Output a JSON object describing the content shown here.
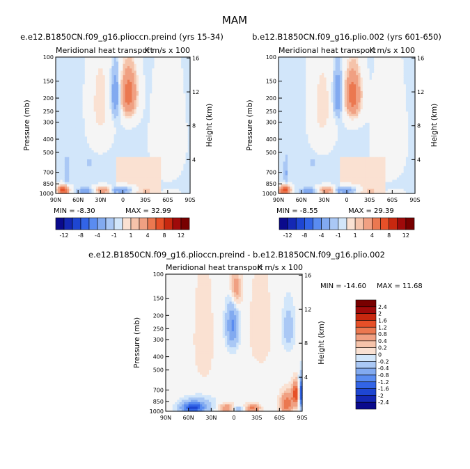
{
  "figure": {
    "title": "MAM"
  },
  "colors": {
    "level_colors": [
      "#0a0a8c",
      "#1428b4",
      "#1e46d2",
      "#3264e6",
      "#5a8cf0",
      "#82aaf0",
      "#aac8f5",
      "#d2e6fa",
      "#f5f5f5",
      "#fae1d2",
      "#f5c3aa",
      "#f0a082",
      "#eb7850",
      "#e65028",
      "#c8280f",
      "#a00a0a",
      "#780000"
    ],
    "background": "#ffffff"
  },
  "chart_data": [
    {
      "type": "heatmap",
      "panel": "top-left",
      "title": "e.e12.B1850CN.f09_g16.plioccn.preind (yrs 15-34)",
      "subtitle": "Meridional heat transport",
      "units": "K m/s x 100",
      "ylabel": "Pressure (mb)",
      "ylabel_right": "Height (km)",
      "x_ticks": [
        "90N",
        "60N",
        "30N",
        "0",
        "30S",
        "60S",
        "90S"
      ],
      "y_ticks": [
        "100",
        "150",
        "200",
        "250",
        "300",
        "400",
        "500",
        "700",
        "850",
        "1000"
      ],
      "y_ticks_right": [
        "16",
        "12",
        "8",
        "4"
      ],
      "min_text": "MIN = -8.30",
      "max_text": "MAX = 32.99",
      "blobs": [
        {
          "lat": -8,
          "p": 185,
          "v": 6,
          "w": 10,
          "h": 75
        },
        {
          "lat": 10,
          "p": 190,
          "v": -3,
          "w": 6,
          "h": 70
        },
        {
          "lat": 30,
          "p": 220,
          "v": 1.5,
          "w": 14,
          "h": 180
        },
        {
          "lat": 2,
          "p": 950,
          "v": -4,
          "w": 14,
          "h": 60
        },
        {
          "lat": 25,
          "p": 950,
          "v": 4,
          "w": 12,
          "h": 60
        },
        {
          "lat": 50,
          "p": 965,
          "v": -3,
          "w": 9,
          "h": 45
        },
        {
          "lat": 80,
          "p": 950,
          "v": 8,
          "w": 7,
          "h": 70
        },
        {
          "lat": -30,
          "p": 965,
          "v": 0.6,
          "w": 12,
          "h": 40
        },
        {
          "lat": -65,
          "p": 975,
          "v": 0.5,
          "w": 10,
          "h": 30
        },
        {
          "lat": 75,
          "p": 700,
          "v": -1.5,
          "w": 3,
          "h": 150
        },
        {
          "lat": 45,
          "p": 600,
          "v": -0.6,
          "w": 5,
          "h": 60
        },
        {
          "lat": -60,
          "p": 400,
          "v": 0.3,
          "w": 25,
          "h": 400
        }
      ],
      "cbar_ticks": [
        "-12",
        "-8",
        "-4",
        "-1",
        "1",
        "4",
        "8",
        "12"
      ]
    },
    {
      "type": "heatmap",
      "panel": "top-right",
      "title": "b.e12.B1850CN.f09_g16.plio.002 (yrs 601-650)",
      "subtitle": "Meridional heat transport",
      "units": "K m/s x 100",
      "ylabel": "Pressure (mb)",
      "ylabel_right": "Height (km)",
      "x_ticks": [
        "90N",
        "60N",
        "30N",
        "0",
        "30S",
        "60S",
        "90S"
      ],
      "y_ticks": [
        "100",
        "150",
        "200",
        "250",
        "300",
        "400",
        "500",
        "700",
        "850",
        "1000"
      ],
      "y_ticks_right": [
        "16",
        "12",
        "8",
        "4"
      ],
      "min_text": "MIN = -8.55",
      "max_text": "MAX = 29.39",
      "blobs": [
        {
          "lat": -8,
          "p": 190,
          "v": 6,
          "w": 10,
          "h": 75
        },
        {
          "lat": 12,
          "p": 190,
          "v": -3,
          "w": 6,
          "h": 70
        },
        {
          "lat": 32,
          "p": 230,
          "v": 1.5,
          "w": 14,
          "h": 180
        },
        {
          "lat": 2,
          "p": 950,
          "v": -4,
          "w": 14,
          "h": 60
        },
        {
          "lat": 25,
          "p": 950,
          "v": 4,
          "w": 12,
          "h": 60
        },
        {
          "lat": 50,
          "p": 965,
          "v": -3,
          "w": 9,
          "h": 45
        },
        {
          "lat": 82,
          "p": 950,
          "v": 8,
          "w": 7,
          "h": 70
        },
        {
          "lat": -30,
          "p": 965,
          "v": 0.6,
          "w": 12,
          "h": 40
        },
        {
          "lat": -65,
          "p": 975,
          "v": 0.5,
          "w": 10,
          "h": 30
        },
        {
          "lat": 80,
          "p": 700,
          "v": -1.5,
          "w": 3,
          "h": 150
        },
        {
          "lat": 45,
          "p": 600,
          "v": -0.6,
          "w": 5,
          "h": 60
        },
        {
          "lat": -55,
          "p": 400,
          "v": 0.3,
          "w": 25,
          "h": 400
        }
      ],
      "cbar_ticks": [
        "-12",
        "-8",
        "-4",
        "-1",
        "1",
        "4",
        "8",
        "12"
      ]
    },
    {
      "type": "heatmap",
      "panel": "bottom",
      "title": "e.e12.B1850CN.f09_g16.plioccn.preind - b.e12.B1850CN.f09_g16.plio.002",
      "subtitle": "Meridional heat transport",
      "units": "K m/s x 100",
      "ylabel": "Pressure (mb)",
      "ylabel_right": "Height (km)",
      "x_ticks": [
        "90N",
        "60N",
        "30N",
        "0",
        "30S",
        "60S",
        "90S"
      ],
      "y_ticks": [
        "100",
        "150",
        "200",
        "250",
        "300",
        "400",
        "500",
        "700",
        "850",
        "1000"
      ],
      "y_ticks_right": [
        "16",
        "12",
        "8",
        "4"
      ],
      "min_text": "MIN = -14.60",
      "max_text": "MAX = 11.68",
      "blobs": [
        {
          "lat": 2,
          "p": 240,
          "v": -1.2,
          "w": 8,
          "h": 90
        },
        {
          "lat": -2,
          "p": 130,
          "v": 0.8,
          "w": 7,
          "h": 45
        },
        {
          "lat": 40,
          "p": 300,
          "v": 0.3,
          "w": 12,
          "h": 250
        },
        {
          "lat": -35,
          "p": 250,
          "v": 0.25,
          "w": 15,
          "h": 200
        },
        {
          "lat": 55,
          "p": 950,
          "v": -1.8,
          "w": 15,
          "h": 90
        },
        {
          "lat": 45,
          "p": 900,
          "v": -0.5,
          "w": 20,
          "h": 120
        },
        {
          "lat": 10,
          "p": 950,
          "v": 0.8,
          "w": 10,
          "h": 70
        },
        {
          "lat": -5,
          "p": 960,
          "v": -0.6,
          "w": 7,
          "h": 40
        },
        {
          "lat": -25,
          "p": 955,
          "v": 1.0,
          "w": 9,
          "h": 70
        },
        {
          "lat": -70,
          "p": 880,
          "v": 1.2,
          "w": 8,
          "h": 160
        },
        {
          "lat": -82,
          "p": 750,
          "v": 1.6,
          "w": 5,
          "h": 140
        },
        {
          "lat": -88,
          "p": 750,
          "v": -2.2,
          "w": 2.5,
          "h": 180
        },
        {
          "lat": -72,
          "p": 250,
          "v": -0.5,
          "w": 8,
          "h": 90
        }
      ],
      "cbar_ticks": [
        "2.4",
        "2",
        "1.6",
        "1.2",
        "0.8",
        "0.4",
        "0.2",
        "0",
        "-0.2",
        "-0.4",
        "-0.8",
        "-1.2",
        "-1.6",
        "-2",
        "-2.4"
      ]
    }
  ]
}
